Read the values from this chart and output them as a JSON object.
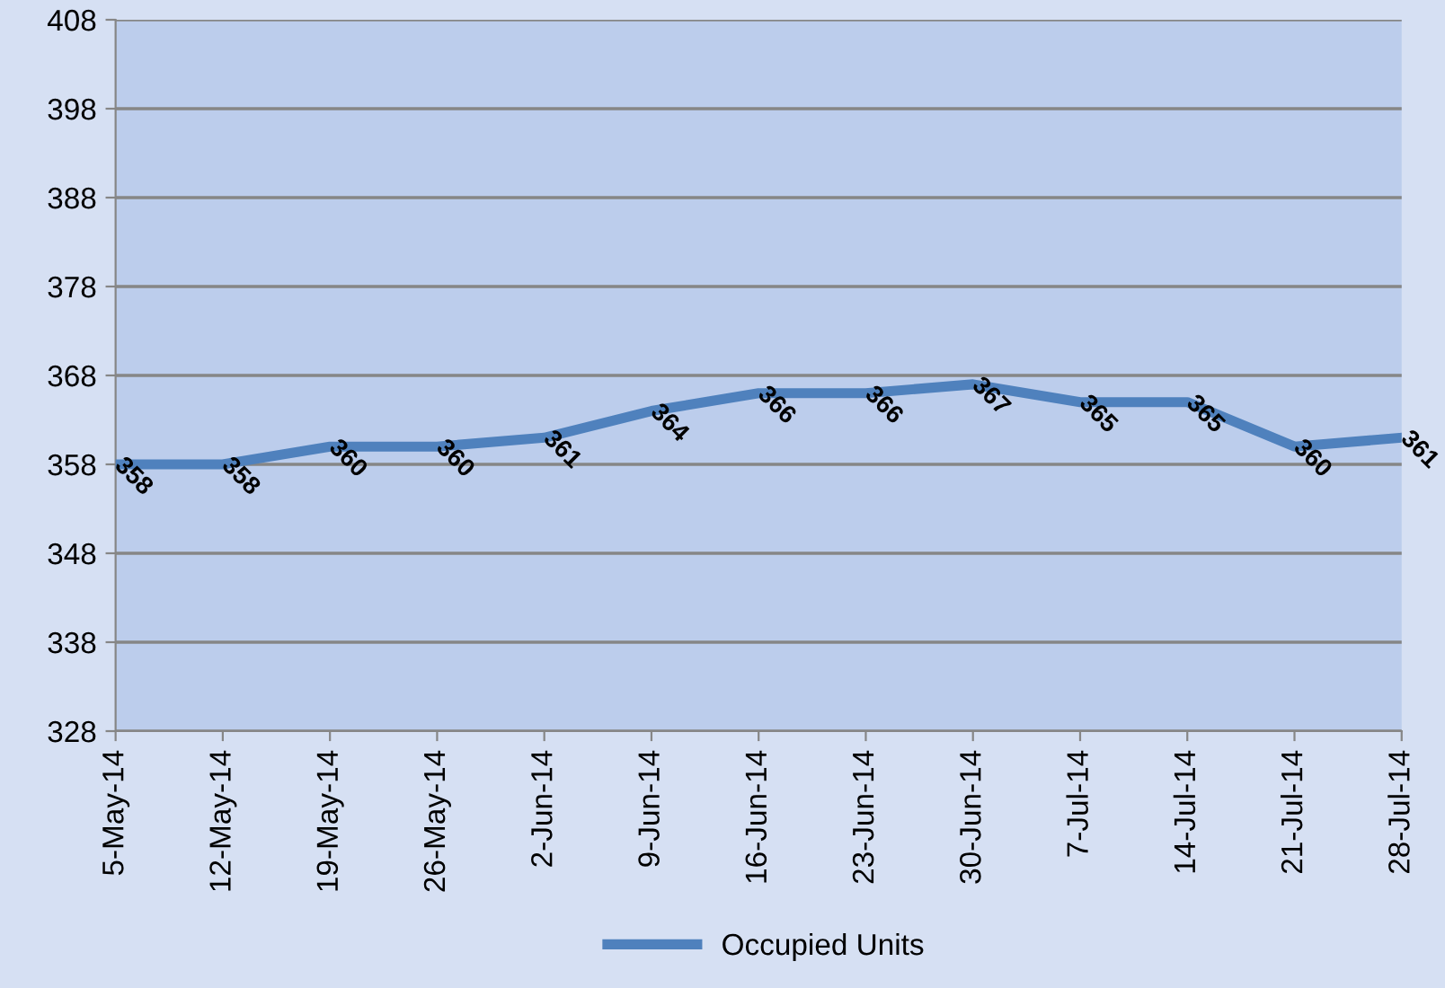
{
  "chart_data": {
    "type": "line",
    "categories": [
      "5-May-14",
      "12-May-14",
      "19-May-14",
      "26-May-14",
      "2-Jun-14",
      "9-Jun-14",
      "16-Jun-14",
      "23-Jun-14",
      "30-Jun-14",
      "7-Jul-14",
      "14-Jul-14",
      "21-Jul-14",
      "28-Jul-14"
    ],
    "series": [
      {
        "name": "Occupied Units",
        "color": "#4f81bd",
        "values": [
          358,
          358,
          360,
          360,
          361,
          364,
          366,
          366,
          367,
          365,
          365,
          360,
          361
        ]
      }
    ],
    "ylim": [
      328,
      408
    ],
    "yticks": [
      328,
      338,
      348,
      358,
      368,
      378,
      388,
      398,
      408
    ],
    "grid": "y",
    "legend": "bottom",
    "data_labels": true,
    "marker": "none",
    "line_style": "solid"
  }
}
